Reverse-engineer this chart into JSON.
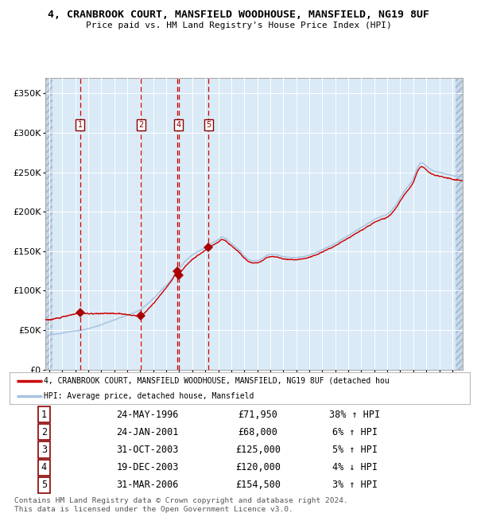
{
  "title_line1": "4, CRANBROOK COURT, MANSFIELD WOODHOUSE, MANSFIELD, NG19 8UF",
  "title_line2": "Price paid vs. HM Land Registry's House Price Index (HPI)",
  "ylabel_ticks": [
    "£0",
    "£50K",
    "£100K",
    "£150K",
    "£200K",
    "£250K",
    "£300K",
    "£350K"
  ],
  "ytick_vals": [
    0,
    50000,
    100000,
    150000,
    200000,
    250000,
    300000,
    350000
  ],
  "ylim": [
    0,
    370000
  ],
  "xlim_start": 1993.7,
  "xlim_end": 2025.8,
  "hpi_line_color": "#a8c4e0",
  "price_line_color": "#cc0000",
  "sale_marker_color": "#aa0000",
  "dashed_line_color": "#cc0000",
  "bg_color": "#daeaf6",
  "grid_color": "#ffffff",
  "sale_dates_x": [
    1996.388,
    2001.065,
    2003.832,
    2003.962,
    2006.247
  ],
  "sale_prices_y": [
    71950,
    68000,
    125000,
    120000,
    154500
  ],
  "sale_labels": [
    "1",
    "2",
    "3",
    "4",
    "5"
  ],
  "sale_labels_on_chart": [
    true,
    true,
    false,
    true,
    true
  ],
  "legend_line1": "4, CRANBROOK COURT, MANSFIELD WOODHOUSE, MANSFIELD, NG19 8UF (detached hou",
  "legend_line2": "HPI: Average price, detached house, Mansfield",
  "table_data": [
    [
      "1",
      "24-MAY-1996",
      "£71,950",
      "38% ↑ HPI"
    ],
    [
      "2",
      "24-JAN-2001",
      "£68,000",
      "6% ↑ HPI"
    ],
    [
      "3",
      "31-OCT-2003",
      "£125,000",
      "5% ↑ HPI"
    ],
    [
      "4",
      "19-DEC-2003",
      "£120,000",
      "4% ↓ HPI"
    ],
    [
      "5",
      "31-MAR-2006",
      "£154,500",
      "3% ↑ HPI"
    ]
  ],
  "footnote_line1": "Contains HM Land Registry data © Crown copyright and database right 2024.",
  "footnote_line2": "This data is licensed under the Open Government Licence v3.0.",
  "hpi_anchors_x": [
    1993.7,
    1994.5,
    1995.0,
    1996.0,
    1997.0,
    1998.0,
    1999.0,
    2000.0,
    2001.0,
    2002.0,
    2003.0,
    2003.5,
    2004.0,
    2004.5,
    2005.0,
    2005.5,
    2006.0,
    2006.5,
    2007.0,
    2007.3,
    2007.8,
    2008.3,
    2008.8,
    2009.3,
    2009.8,
    2010.3,
    2010.8,
    2011.3,
    2011.8,
    2012.5,
    2013.0,
    2013.5,
    2014.0,
    2014.5,
    2015.0,
    2015.5,
    2016.0,
    2016.5,
    2017.0,
    2017.5,
    2018.0,
    2018.5,
    2019.0,
    2019.5,
    2020.0,
    2020.5,
    2021.0,
    2021.5,
    2022.0,
    2022.3,
    2022.6,
    2023.0,
    2023.5,
    2024.0,
    2024.5,
    2025.0,
    2025.8
  ],
  "hpi_anchors_y": [
    44000,
    45000,
    46500,
    49000,
    52000,
    57000,
    63000,
    69000,
    76000,
    90000,
    107000,
    116000,
    128000,
    138000,
    145000,
    150000,
    155000,
    160000,
    165000,
    168000,
    163000,
    156000,
    148000,
    140000,
    138000,
    140000,
    145000,
    146000,
    144000,
    142000,
    142000,
    143000,
    145000,
    148000,
    152000,
    156000,
    160000,
    165000,
    170000,
    175000,
    180000,
    185000,
    190000,
    194000,
    197000,
    205000,
    218000,
    230000,
    242000,
    255000,
    262000,
    258000,
    252000,
    250000,
    248000,
    246000,
    244000
  ]
}
